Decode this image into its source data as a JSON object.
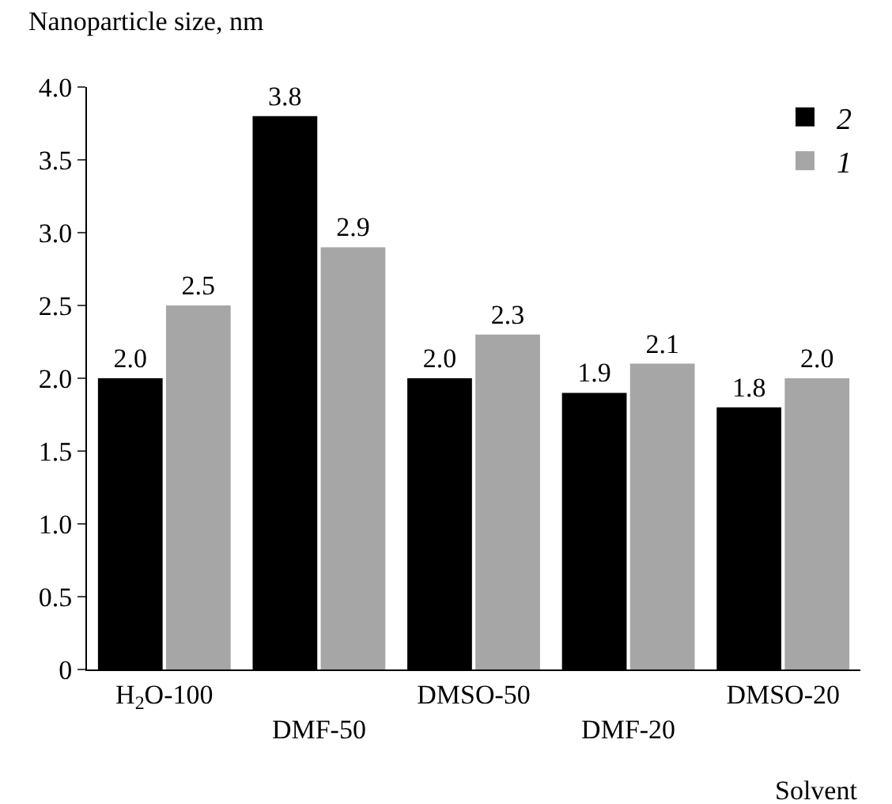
{
  "chart_data": {
    "type": "bar",
    "xlabel": "Solvent",
    "ylabel": "Nanoparticle size, nm",
    "categories": [
      "H$_{2}$O-100",
      "DMF-50",
      "DMSO-50",
      "DMF-20",
      "DMSO-20"
    ],
    "series": [
      {
        "name": "2",
        "color": "#000000",
        "values": [
          2.0,
          3.8,
          2.0,
          1.9,
          1.8
        ],
        "value_labels": [
          "2.0",
          "3.8",
          "2.0",
          "1.9",
          "1.8"
        ]
      },
      {
        "name": "1",
        "color": "#a6a6a6",
        "values": [
          2.5,
          2.9,
          2.3,
          2.1,
          2.0
        ],
        "value_labels": [
          "2.5",
          "2.9",
          "2.3",
          "2.1",
          "2.0"
        ]
      }
    ],
    "ylim": [
      0,
      4
    ],
    "yticks": [
      0,
      0.5,
      {
        "value": 1,
        "label": "1.0"
      },
      1.5,
      {
        "value": 2,
        "label": "2.0"
      },
      2.5,
      {
        "value": 3,
        "label": "3.0"
      },
      3.5,
      {
        "value": 4,
        "label": "4.0"
      }
    ],
    "grid": false,
    "legend": "top right"
  }
}
